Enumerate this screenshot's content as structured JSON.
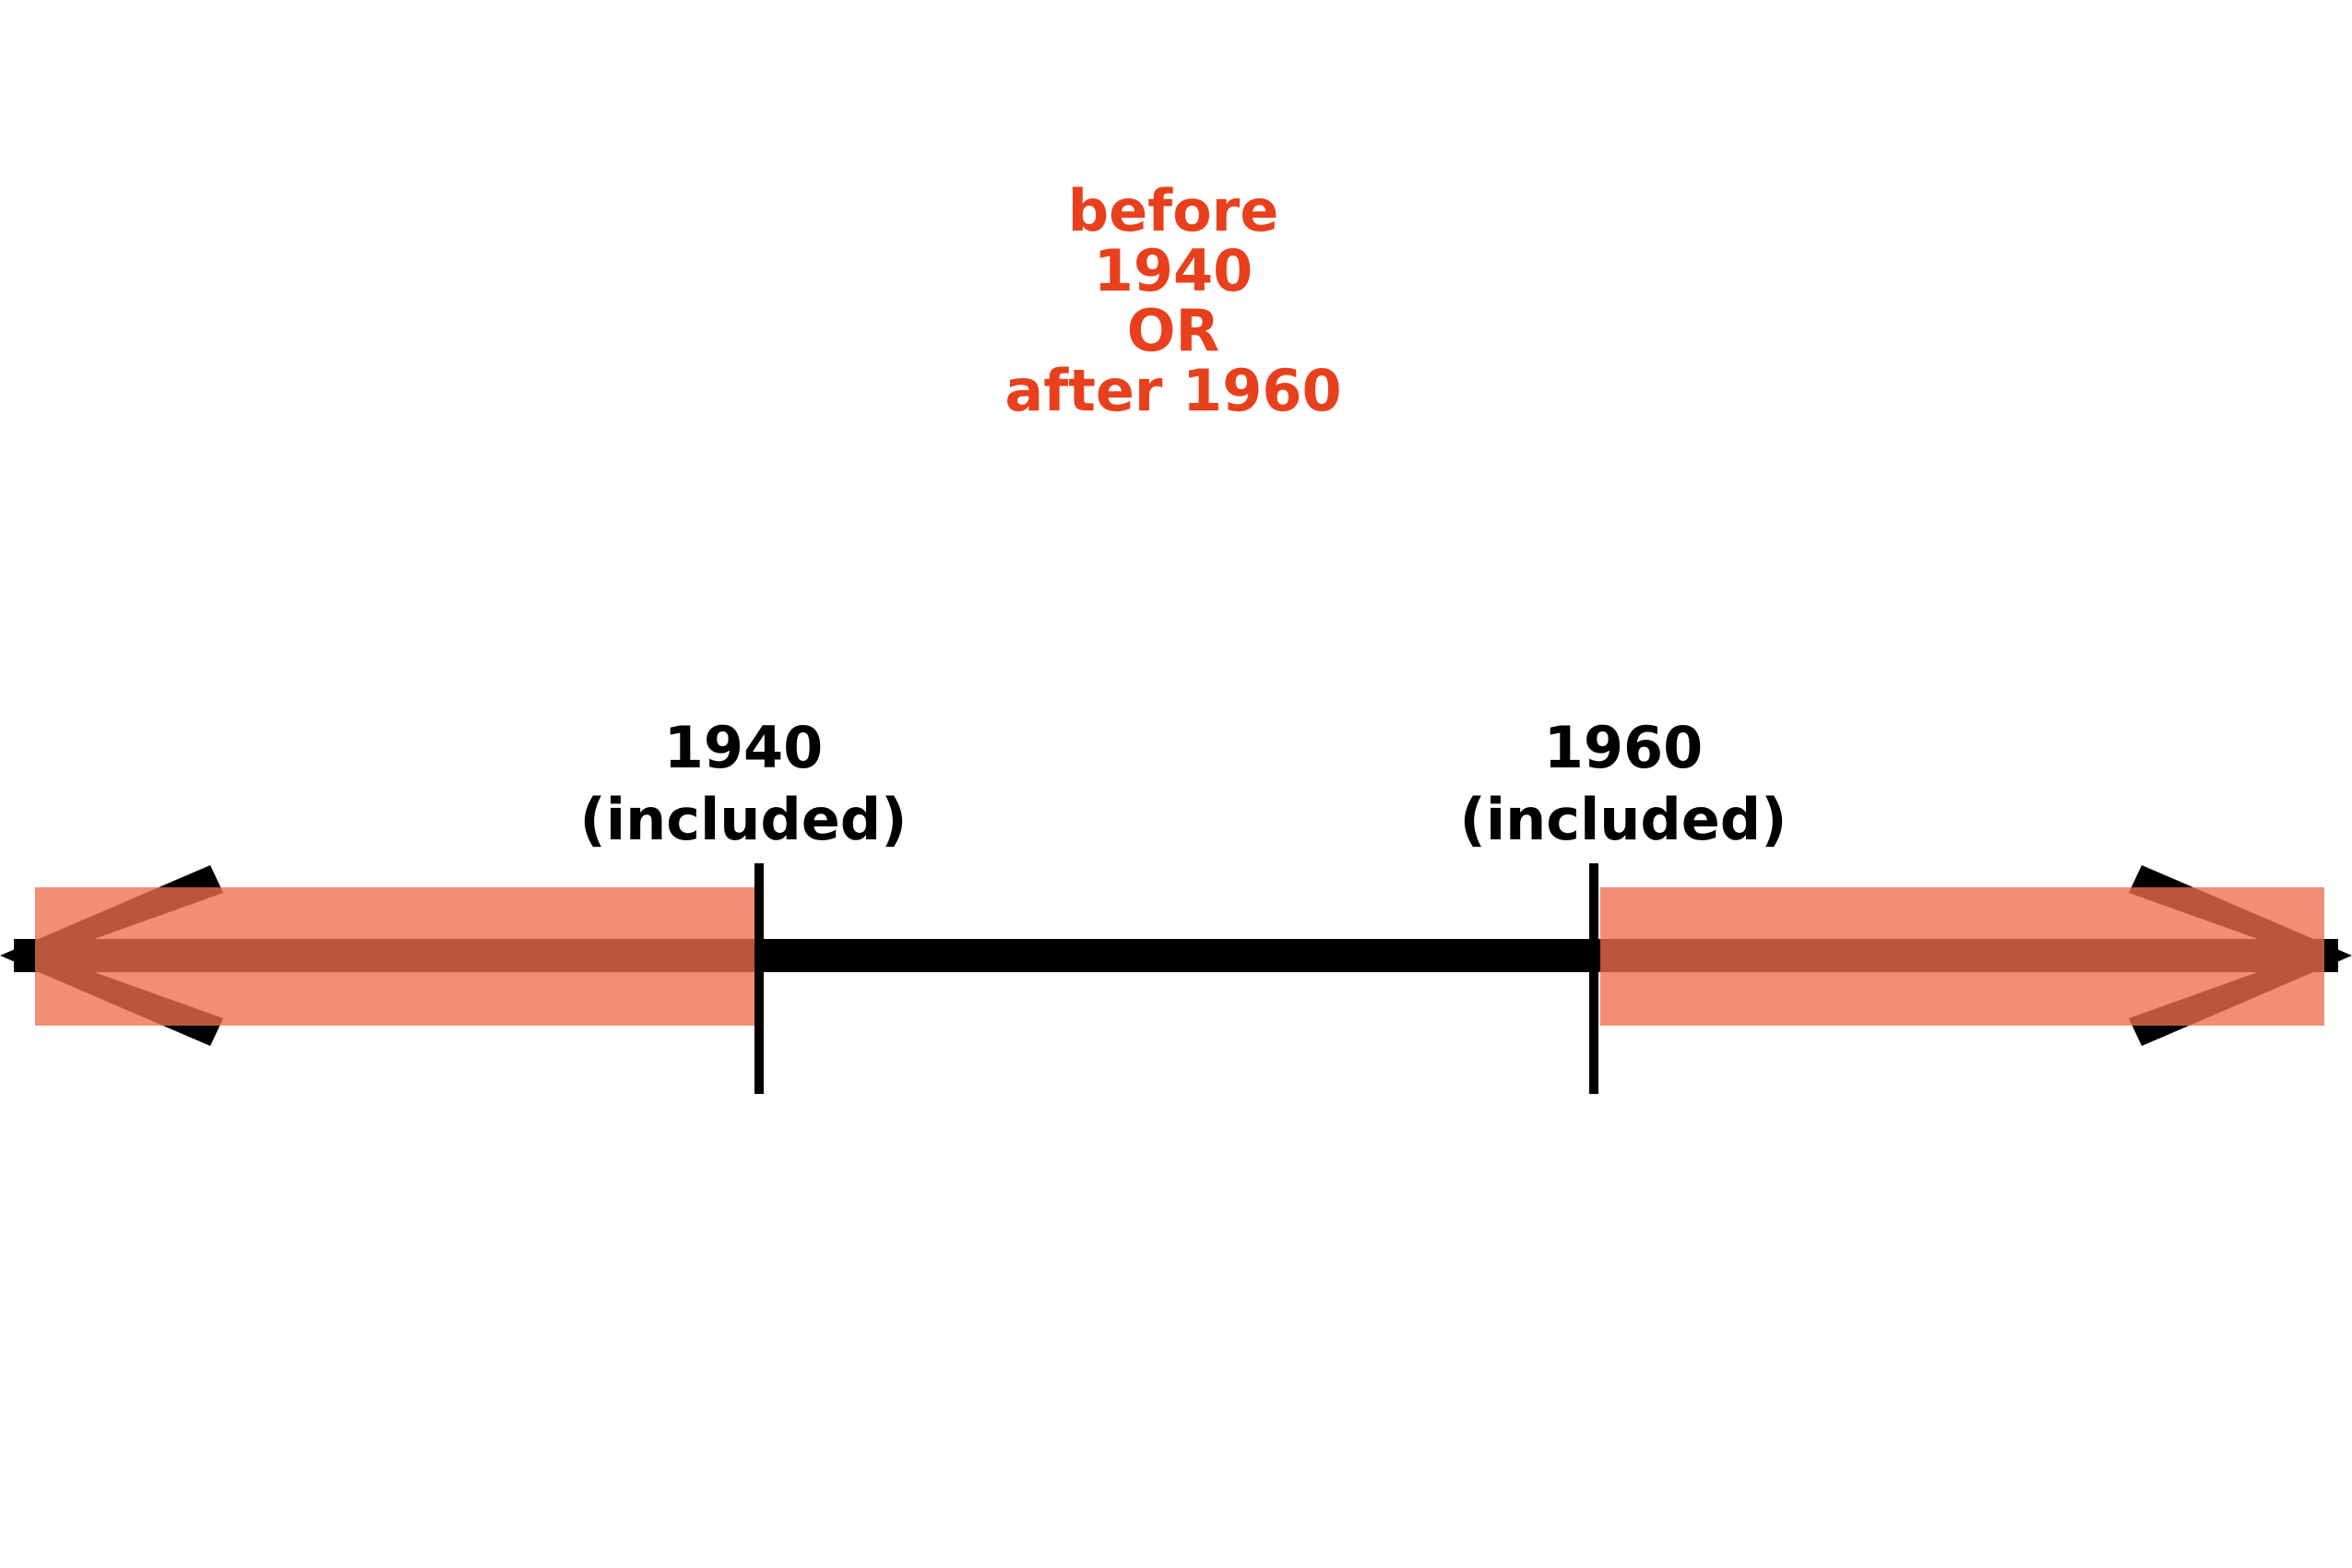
{
  "caption": {
    "lines": [
      "before",
      "1940",
      "OR",
      "after 1960"
    ],
    "color": "#e8401c"
  },
  "number_line": {
    "line_color": "#000000",
    "highlight_color": "#ee6e52",
    "ticks": [
      {
        "year": "1940",
        "note": "(included)"
      },
      {
        "year": "1960",
        "note": "(included)"
      }
    ],
    "highlighted_ranges": [
      {
        "description": "before 1940",
        "to": "1940",
        "direction": "left"
      },
      {
        "description": "after 1960",
        "from": "1960",
        "direction": "right"
      }
    ],
    "arrows": [
      "left",
      "right"
    ]
  }
}
